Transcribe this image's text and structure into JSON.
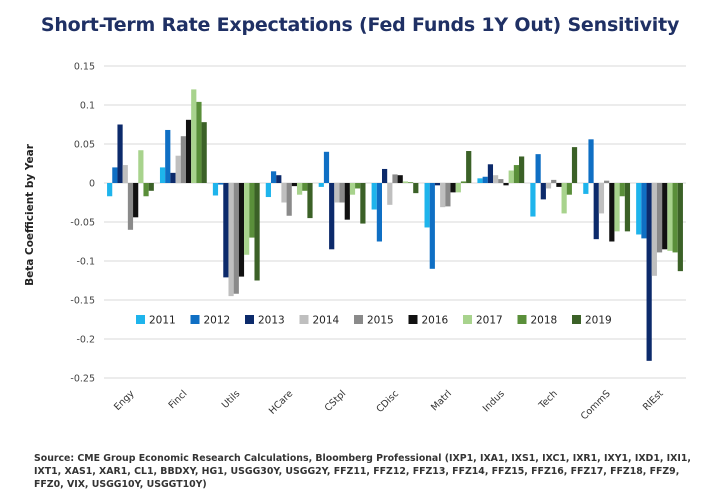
{
  "chart_data": {
    "type": "bar",
    "title": "Short-Term Rate Expectations (Fed Funds 1Y Out) Sensitivity",
    "xlabel": "",
    "ylabel": "Beta Coefficient by Year",
    "ylim": [
      -0.25,
      0.15
    ],
    "yticks": [
      0.15,
      0.1,
      0.05,
      0,
      -0.05,
      -0.1,
      -0.15,
      -0.2,
      -0.25
    ],
    "ytick_labels": [
      "0.15",
      "0.1",
      "0.05",
      "0",
      "-0.05",
      "-0.1",
      "-0.15",
      "-0.2",
      "-0.25"
    ],
    "grid": true,
    "legend_position": "bottom-inside",
    "categories": [
      "Engy",
      "Fincl",
      "Utils",
      "HCare",
      "CStpl",
      "CDisc",
      "Matrl",
      "Indus",
      "Tech",
      "CommS",
      "RlEst"
    ],
    "series": [
      {
        "name": "2011",
        "color": "#1eb4ec",
        "values": [
          -0.017,
          0.02,
          -0.016,
          -0.018,
          -0.005,
          -0.034,
          -0.057,
          0.006,
          -0.043,
          -0.014,
          -0.066
        ]
      },
      {
        "name": "2012",
        "color": "#0f6fc4",
        "values": [
          0.02,
          0.068,
          -0.002,
          0.015,
          0.04,
          -0.075,
          -0.11,
          0.008,
          0.037,
          0.056,
          -0.071
        ]
      },
      {
        "name": "2013",
        "color": "#0c2a6b",
        "values": [
          0.075,
          0.013,
          -0.121,
          0.01,
          -0.085,
          0.018,
          -0.003,
          0.024,
          -0.021,
          -0.072,
          -0.228
        ]
      },
      {
        "name": "2014",
        "color": "#bfbfbf",
        "values": [
          0.023,
          0.035,
          -0.145,
          -0.025,
          -0.025,
          -0.028,
          -0.031,
          0.01,
          -0.007,
          -0.039,
          -0.119
        ]
      },
      {
        "name": "2015",
        "color": "#8a8a8a",
        "values": [
          -0.06,
          0.06,
          -0.142,
          -0.042,
          -0.025,
          0.011,
          -0.03,
          0.005,
          0.004,
          0.003,
          -0.089
        ]
      },
      {
        "name": "2016",
        "color": "#111111",
        "values": [
          -0.044,
          0.081,
          -0.12,
          -0.004,
          -0.047,
          0.01,
          -0.012,
          -0.003,
          -0.005,
          -0.075,
          -0.085
        ]
      },
      {
        "name": "2017",
        "color": "#a8d38d",
        "values": [
          0.042,
          0.12,
          -0.092,
          -0.015,
          -0.015,
          0.002,
          -0.012,
          0.016,
          -0.039,
          -0.062,
          -0.087
        ]
      },
      {
        "name": "2018",
        "color": "#5a8f3a",
        "values": [
          -0.017,
          0.104,
          -0.07,
          -0.01,
          -0.007,
          0.001,
          0.002,
          0.023,
          -0.015,
          -0.017,
          -0.089
        ]
      },
      {
        "name": "2019",
        "color": "#3b6127",
        "values": [
          -0.01,
          0.078,
          -0.125,
          -0.045,
          -0.052,
          -0.013,
          0.041,
          0.034,
          0.046,
          -0.062,
          -0.113
        ]
      }
    ]
  },
  "source_text": "Source: CME Group Economic Research Calculations, Bloomberg Professional (IXP1, IXA1, IXS1, IXC1, IXR1, IXY1, IXD1, IXI1, IXT1, XAS1, XAR1, CL1, BBDXY, HG1, USGG30Y, USGG2Y, FFZ11, FFZ12, FFZ13, FFZ14, FFZ15, FFZ16, FFZ17, FFZ18, FFZ9, FFZ0, VIX, USGG10Y, USGGT10Y)",
  "colors": {
    "title": "#1f3064",
    "grid": "#d9d9d9"
  }
}
